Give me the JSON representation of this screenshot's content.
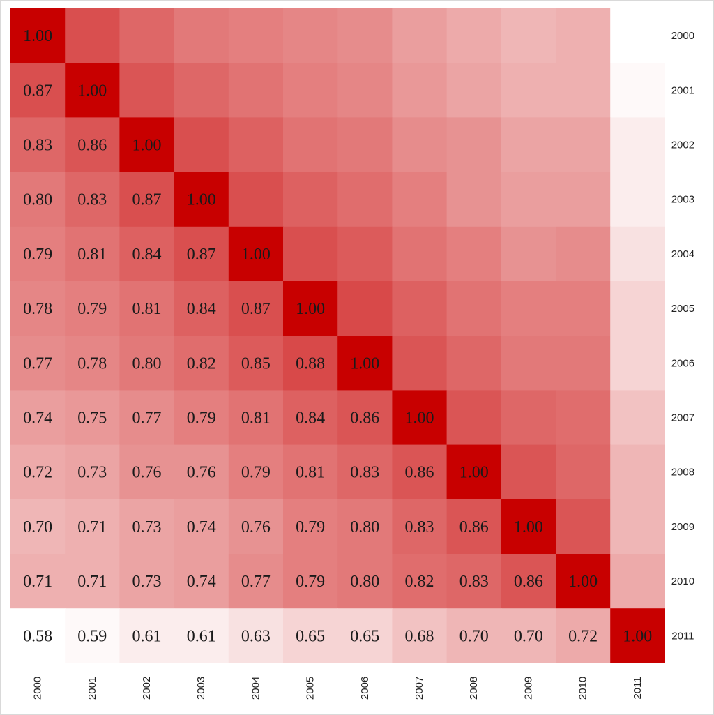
{
  "chart_data": {
    "type": "heatmap",
    "title": "",
    "xlabel": "",
    "ylabel": "",
    "x_categories": [
      "2000",
      "2001",
      "2002",
      "2003",
      "2004",
      "2005",
      "2006",
      "2007",
      "2008",
      "2009",
      "2010",
      "2011"
    ],
    "y_categories": [
      "2000",
      "2001",
      "2002",
      "2003",
      "2004",
      "2005",
      "2006",
      "2007",
      "2008",
      "2009",
      "2010",
      "2011"
    ],
    "lower_values": [
      [
        "1.00"
      ],
      [
        "0.87",
        "1.00"
      ],
      [
        "0.83",
        "0.86",
        "1.00"
      ],
      [
        "0.80",
        "0.83",
        "0.87",
        "1.00"
      ],
      [
        "0.79",
        "0.81",
        "0.84",
        "0.87",
        "1.00"
      ],
      [
        "0.78",
        "0.79",
        "0.81",
        "0.84",
        "0.87",
        "1.00"
      ],
      [
        "0.77",
        "0.78",
        "0.80",
        "0.82",
        "0.85",
        "0.88",
        "1.00"
      ],
      [
        "0.74",
        "0.75",
        "0.77",
        "0.79",
        "0.81",
        "0.84",
        "0.86",
        "1.00"
      ],
      [
        "0.72",
        "0.73",
        "0.76",
        "0.76",
        "0.79",
        "0.81",
        "0.83",
        "0.86",
        "1.00"
      ],
      [
        "0.70",
        "0.71",
        "0.73",
        "0.74",
        "0.76",
        "0.79",
        "0.80",
        "0.83",
        "0.86",
        "1.00"
      ],
      [
        "0.71",
        "0.71",
        "0.73",
        "0.74",
        "0.77",
        "0.79",
        "0.80",
        "0.82",
        "0.83",
        "0.86",
        "1.00"
      ],
      [
        "0.58",
        "0.59",
        "0.61",
        "0.61",
        "0.63",
        "0.65",
        "0.65",
        "0.68",
        "0.70",
        "0.70",
        "0.72",
        "1.00"
      ]
    ],
    "color_scale": {
      "low_value": 0.58,
      "high_value": 1.0,
      "low_color": "#ffffff",
      "high_color": "#c80000"
    },
    "upper_triangle": "color only, mirrored",
    "x_tick_position": "bottom",
    "y_tick_position": "right",
    "legend": "none"
  }
}
